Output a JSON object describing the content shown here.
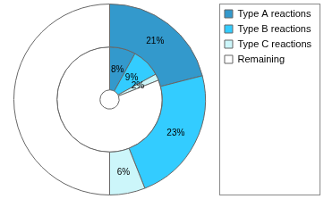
{
  "chart_data": {
    "type": "doughnut",
    "categories": [
      "Type A reactions",
      "Type B reactions",
      "Type C reactions",
      "Remaining"
    ],
    "colors": [
      "#3399cc",
      "#33ccff",
      "#ccf6fa",
      "#ffffff"
    ],
    "series": [
      {
        "values": [
          21,
          23,
          6,
          50
        ],
        "value_labels": [
          "21%",
          "23%",
          "6%",
          null
        ]
      },
      {
        "values": [
          8,
          9,
          2,
          81
        ],
        "value_labels": [
          "8%",
          "9%",
          "2%",
          null
        ]
      }
    ],
    "legend": "right",
    "data_labels": true
  }
}
